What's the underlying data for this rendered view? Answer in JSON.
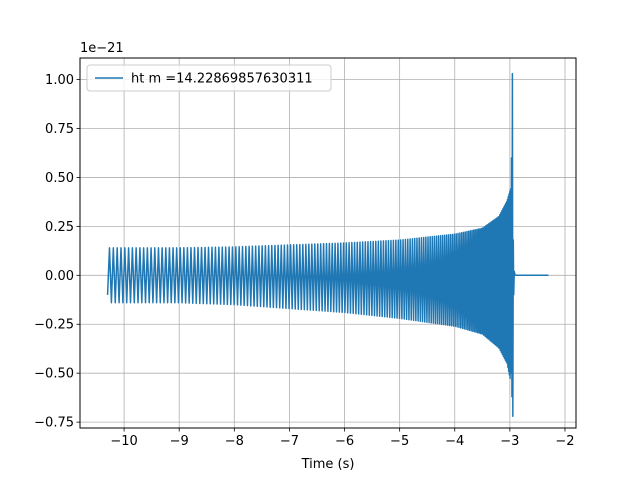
{
  "chart_data": {
    "type": "line",
    "title": "",
    "xlabel": "Time (s)",
    "ylabel": "",
    "y_scale_label": "1e−21",
    "xlim": [
      -10.8,
      -1.8
    ],
    "ylim": [
      -0.78,
      1.11
    ],
    "x_ticks": [
      -10,
      -9,
      -8,
      -7,
      -6,
      -5,
      -4,
      -3,
      -2
    ],
    "x_tick_labels": [
      "−10",
      "−9",
      "−8",
      "−7",
      "−6",
      "−5",
      "−4",
      "−3",
      "−2"
    ],
    "y_ticks": [
      -0.75,
      -0.5,
      -0.25,
      0.0,
      0.25,
      0.5,
      0.75,
      1.0
    ],
    "y_tick_labels": [
      "−0.75",
      "−0.50",
      "−0.25",
      "0.00",
      "0.25",
      "0.50",
      "0.75",
      "1.00"
    ],
    "grid": true,
    "legend_position": "upper left",
    "series": [
      {
        "name": "ht m =14.22869857630311",
        "color": "#1f77b4",
        "x_start": -10.3,
        "merger_time": -2.95,
        "x_end": -2.3,
        "envelope_x": [
          -10.3,
          -9,
          -8,
          -7,
          -6,
          -5,
          -4,
          -3.5,
          -3.2,
          -3.05,
          -2.98,
          -2.95
        ],
        "envelope_upper": [
          0.14,
          0.14,
          0.145,
          0.155,
          0.165,
          0.18,
          0.21,
          0.24,
          0.3,
          0.38,
          0.45,
          1.03
        ],
        "envelope_lower": [
          -0.14,
          -0.14,
          -0.15,
          -0.17,
          -0.19,
          -0.22,
          -0.26,
          -0.3,
          -0.37,
          -0.45,
          -0.55,
          -0.72
        ],
        "start_value": -0.1,
        "postmerger_value": 0.0
      }
    ]
  }
}
